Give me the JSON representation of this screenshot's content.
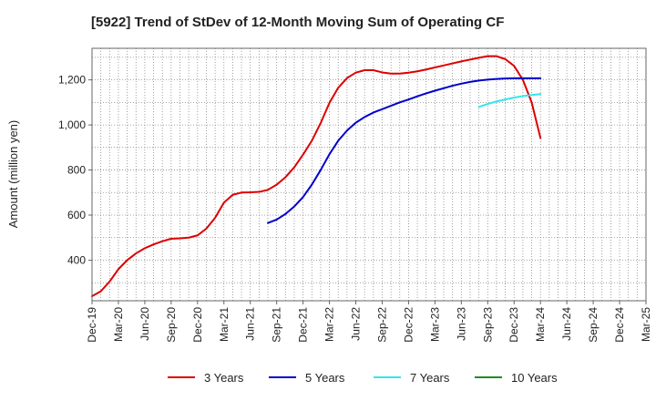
{
  "chart_data": {
    "type": "line",
    "title": "[5922]  Trend of StDev of 12-Month Moving Sum of Operating CF",
    "xlabel": "",
    "ylabel": "Amount (million yen)",
    "ylim": [
      220,
      1340
    ],
    "yticks": [
      400,
      600,
      800,
      1000,
      1200
    ],
    "ytick_labels": [
      "400",
      "600",
      "800",
      "1,000",
      "1,200"
    ],
    "xlim": [
      "Dec-19",
      "Mar-25"
    ],
    "x_tick_labels": [
      "Dec-19",
      "Mar-20",
      "Jun-20",
      "Sep-20",
      "Dec-20",
      "Mar-21",
      "Jun-21",
      "Sep-21",
      "Dec-21",
      "Mar-22",
      "Jun-22",
      "Sep-22",
      "Dec-22",
      "Mar-23",
      "Jun-23",
      "Sep-23",
      "Dec-23",
      "Mar-24",
      "Jun-24",
      "Sep-24",
      "Dec-24",
      "Mar-25"
    ],
    "grid": true,
    "legend_position": "bottom",
    "series": [
      {
        "name": "3 Years",
        "color": "#dd0000",
        "x": [
          "Dec-19",
          "Jan-20",
          "Feb-20",
          "Mar-20",
          "Apr-20",
          "May-20",
          "Jun-20",
          "Jul-20",
          "Aug-20",
          "Sep-20",
          "Oct-20",
          "Nov-20",
          "Dec-20",
          "Jan-21",
          "Feb-21",
          "Mar-21",
          "Apr-21",
          "May-21",
          "Jun-21",
          "Jul-21",
          "Aug-21",
          "Sep-21",
          "Oct-21",
          "Nov-21",
          "Dec-21",
          "Jan-22",
          "Feb-22",
          "Mar-22",
          "Apr-22",
          "May-22",
          "Jun-22",
          "Jul-22",
          "Aug-22",
          "Sep-22",
          "Oct-22",
          "Nov-22",
          "Dec-22",
          "Jan-23",
          "Feb-23",
          "Mar-23",
          "Apr-23",
          "May-23",
          "Jun-23",
          "Jul-23",
          "Aug-23",
          "Sep-23",
          "Oct-23",
          "Nov-23",
          "Dec-23",
          "Jan-24",
          "Feb-24",
          "Mar-24"
        ],
        "values": [
          240,
          262,
          305,
          360,
          400,
          430,
          453,
          470,
          484,
          495,
          497,
          500,
          510,
          540,
          588,
          655,
          690,
          700,
          701,
          703,
          712,
          735,
          768,
          812,
          868,
          930,
          1008,
          1098,
          1165,
          1208,
          1232,
          1243,
          1243,
          1233,
          1228,
          1228,
          1232,
          1238,
          1246,
          1255,
          1264,
          1273,
          1282,
          1290,
          1298,
          1305,
          1305,
          1292,
          1262,
          1200,
          1100,
          942
        ]
      },
      {
        "name": "5 Years",
        "color": "#0000cc",
        "x": [
          "Aug-21",
          "Sep-21",
          "Oct-21",
          "Nov-21",
          "Dec-21",
          "Jan-22",
          "Feb-22",
          "Mar-22",
          "Apr-22",
          "May-22",
          "Jun-22",
          "Jul-22",
          "Aug-22",
          "Sep-22",
          "Oct-22",
          "Nov-22",
          "Dec-22",
          "Jan-23",
          "Feb-23",
          "Mar-23",
          "Apr-23",
          "May-23",
          "Jun-23",
          "Jul-23",
          "Aug-23",
          "Sep-23",
          "Oct-23",
          "Nov-23",
          "Dec-23",
          "Jan-24",
          "Feb-24",
          "Mar-24"
        ],
        "values": [
          565,
          580,
          605,
          638,
          680,
          735,
          800,
          870,
          930,
          975,
          1010,
          1035,
          1055,
          1070,
          1085,
          1100,
          1113,
          1127,
          1140,
          1152,
          1163,
          1174,
          1183,
          1191,
          1197,
          1201,
          1204,
          1206,
          1207,
          1207,
          1207,
          1207
        ]
      },
      {
        "name": "7 Years",
        "color": "#33e5ee",
        "x": [
          "Aug-23",
          "Sep-23",
          "Oct-23",
          "Nov-23",
          "Dec-23",
          "Jan-24",
          "Feb-24",
          "Mar-24"
        ],
        "values": [
          1080,
          1093,
          1104,
          1113,
          1121,
          1128,
          1133,
          1137
        ]
      },
      {
        "name": "10 Years",
        "color": "#228b22",
        "x": [],
        "values": []
      }
    ]
  }
}
